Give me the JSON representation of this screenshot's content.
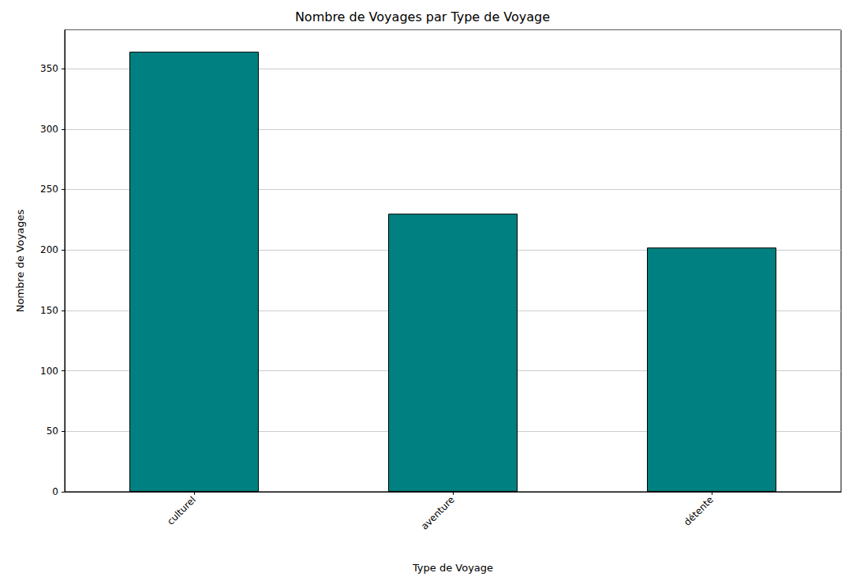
{
  "chart_data": {
    "type": "bar",
    "title": "Nombre de Voyages par Type de Voyage",
    "xlabel": "Type de Voyage",
    "ylabel": "Nombre de Voyages",
    "categories": [
      "culturel",
      "aventure",
      "détente"
    ],
    "values": [
      364,
      230,
      202
    ],
    "color": "#008080",
    "ylim": [
      0,
      382
    ],
    "yticks": [
      0,
      50,
      100,
      150,
      200,
      250,
      300,
      350
    ],
    "grid": true
  }
}
